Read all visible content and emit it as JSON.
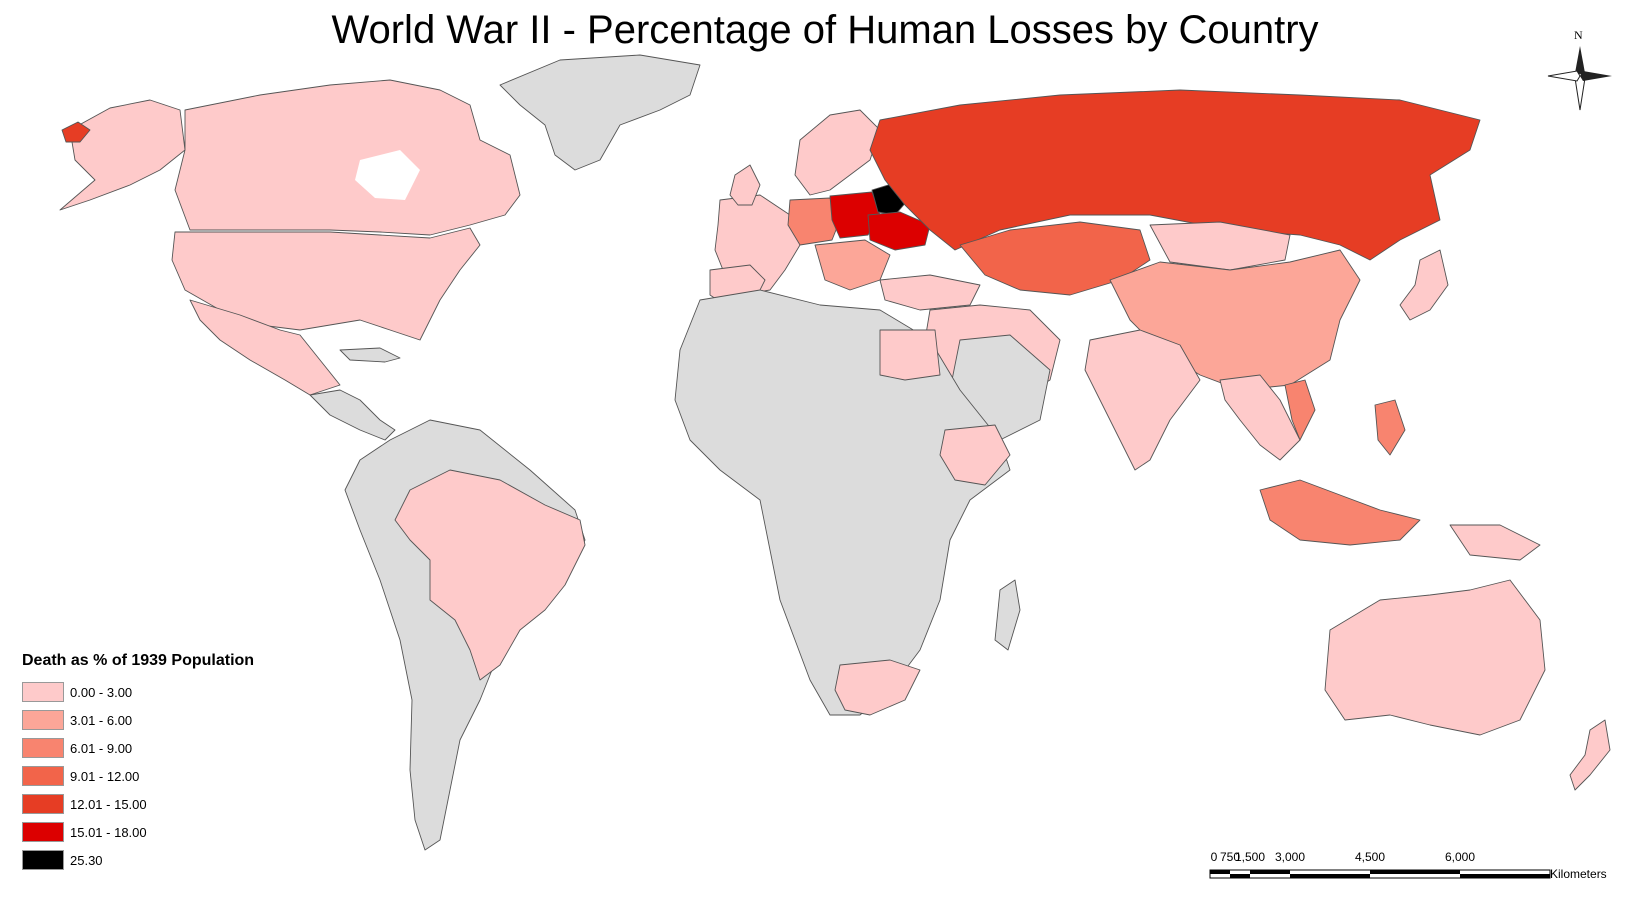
{
  "title": "World War II - Percentage of Human Losses by Country",
  "legend": {
    "title": "Death as % of 1939 Population",
    "classes": [
      {
        "label": "0.00 - 3.00",
        "color": "#fecaca"
      },
      {
        "label": "3.01 - 6.00",
        "color": "#fca698"
      },
      {
        "label": "6.01 - 9.00",
        "color": "#f8846f"
      },
      {
        "label": "9.01 - 12.00",
        "color": "#f2644a"
      },
      {
        "label": "12.01 - 15.00",
        "color": "#e63d24"
      },
      {
        "label": "15.01 - 18.00",
        "color": "#dc0000"
      },
      {
        "label": "25.30",
        "color": "#000000"
      }
    ]
  },
  "no_data_color": "#dcdcdc",
  "scale_bar": {
    "ticks": [
      "0",
      "750",
      "1,500",
      "3,000",
      "4,500",
      "6,000"
    ],
    "unit": "Kilometers"
  },
  "north_arrow": {
    "label": "N"
  }
}
